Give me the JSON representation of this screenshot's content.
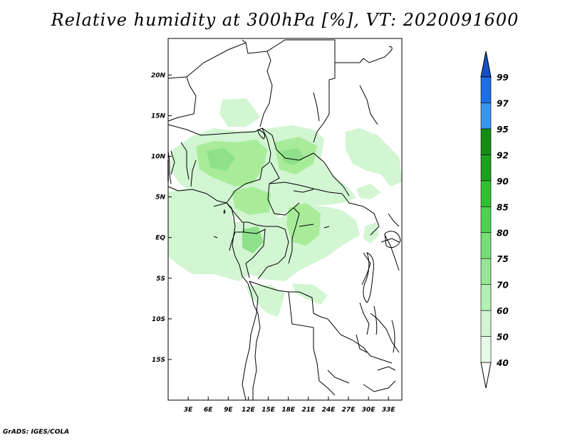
{
  "title": "Relative humidity at 300hPa [%], VT: 2020091600",
  "credit": "GrADS: IGES/COLA",
  "map": {
    "lat_labels": [
      "20N",
      "15N",
      "10N",
      "5N",
      "EQ",
      "5S",
      "10S",
      "15S"
    ],
    "lon_labels": [
      "3E",
      "6E",
      "9E",
      "12E",
      "15E",
      "18E",
      "21E",
      "24E",
      "27E",
      "30E",
      "33E"
    ],
    "lat_range": [
      -20,
      24.5
    ],
    "lon_range": [
      0,
      35
    ],
    "lat_ticks": [
      20,
      15,
      10,
      5,
      0,
      -5,
      -10,
      -15
    ],
    "lon_ticks": [
      3,
      6,
      9,
      12,
      15,
      18,
      21,
      24,
      27,
      30,
      33
    ]
  },
  "colorbar": {
    "labels": [
      "40",
      "50",
      "60",
      "70",
      "75",
      "80",
      "85",
      "90",
      "92",
      "95",
      "97",
      "99"
    ],
    "colors": [
      "#e6fae6",
      "#d2f5d2",
      "#b4f0b4",
      "#96e696",
      "#78dc78",
      "#50d250",
      "#32be32",
      "#1ea01e",
      "#148c14",
      "#3c96f0",
      "#1e6ee6",
      "#1450c8"
    ]
  },
  "colors": {
    "humid_light": "#d2f5d2",
    "humid_mid": "#a8ec9a",
    "humid_dark": "#8fe08a"
  }
}
